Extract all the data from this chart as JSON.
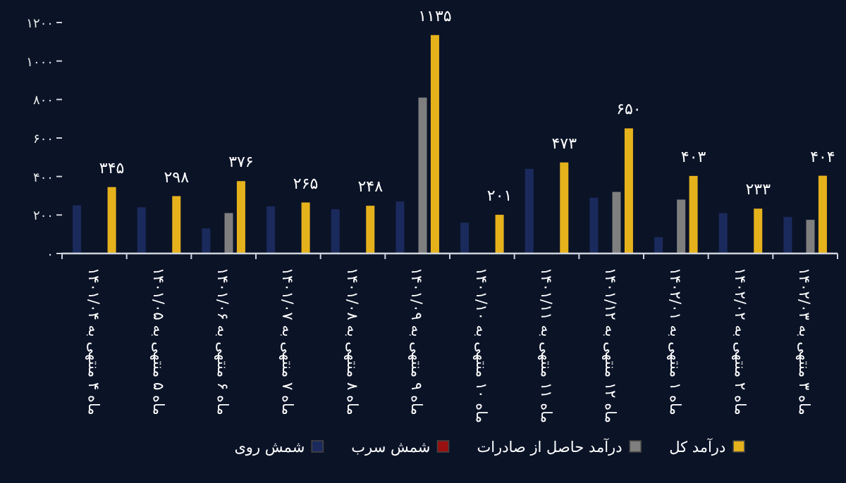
{
  "chart_data": {
    "type": "bar",
    "categories": [
      "ماه ۴ منتهی به ۱۴۰۱/۰۴",
      "ماه ۵ منتهی به ۱۴۰۱/۰۵",
      "ماه ۶ منتهی به ۱۴۰۱/۰۶",
      "ماه ۷ منتهی به ۱۴۰۱/۰۷",
      "ماه ۸ منتهی به ۱۴۰۱/۰۸",
      "ماه ۹ منتهی به ۱۴۰۱/۰۹",
      "ماه ۱۰ منتهی به ۱۴۰۱/۱۰",
      "ماه ۱۱ منتهی به ۱۴۰۱/۱۱",
      "ماه ۱۲ منتهی به ۱۴۰۱/۱۲",
      "ماه ۱ منتهی به ۱۴۰۲/۰۱",
      "ماه ۲ منتهی به ۱۴۰۲/۰۲",
      "ماه ۳ منتهی به ۱۴۰۲/۰۳"
    ],
    "series": [
      {
        "name": "شمش روی",
        "color": "#1b2a5c",
        "values": [
          250,
          240,
          130,
          245,
          230,
          270,
          160,
          440,
          290,
          85,
          210,
          190
        ]
      },
      {
        "name": "شمش سرب",
        "color": "#9a1010",
        "values": [
          2,
          2,
          2,
          2,
          2,
          2,
          2,
          2,
          2,
          2,
          2,
          2
        ]
      },
      {
        "name": "درآمد حاصل از صادرات",
        "color": "#7f7f7f",
        "values": [
          null,
          null,
          210,
          null,
          null,
          810,
          null,
          null,
          320,
          280,
          null,
          175
        ]
      },
      {
        "name": "درآمد کل",
        "color": "#e6b21c",
        "values": [
          345,
          298,
          376,
          265,
          248,
          1135,
          201,
          473,
          650,
          403,
          233,
          404
        ],
        "value_labels": [
          "۳۴۵",
          "۲۹۸",
          "۳۷۶",
          "۲۶۵",
          "۲۴۸",
          "۱۱۳۵",
          "۲۰۱",
          "۴۷۳",
          "۶۵۰",
          "۴۰۳",
          "۲۳۳",
          "۴۰۴"
        ]
      }
    ],
    "ylim": [
      0,
      1200
    ],
    "yticks": [
      {
        "value": 0,
        "label": "۰"
      },
      {
        "value": 200,
        "label": "۲۰۰"
      },
      {
        "value": 400,
        "label": "۴۰۰"
      },
      {
        "value": 600,
        "label": "۶۰۰"
      },
      {
        "value": 800,
        "label": "۸۰۰"
      },
      {
        "value": 1000,
        "label": "۱۰۰۰"
      },
      {
        "value": 1200,
        "label": "۱۲۰۰"
      }
    ],
    "legend": "bottom"
  }
}
